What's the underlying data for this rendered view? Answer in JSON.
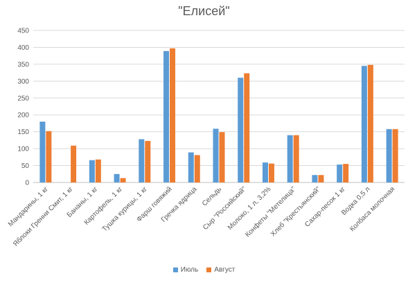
{
  "chart_data": {
    "type": "bar",
    "title": "\"Елисей\"",
    "categories": [
      "Мандарины, 1 кг",
      "Яблоки Гренни Смит, 1 кг",
      "Бананы, 1 кг",
      "Картофель, 1 кг",
      "Тушка курицы, 1 кг",
      "Фарш говяжий",
      "Гречка ядрица",
      "Сельдь",
      "Сыр \"Российский\"",
      "Молоко, 1 л, 3,2%",
      "Конфеты \"Метелица\"",
      "Хлеб \"Крестьянский\"",
      "Сахар-песок 1 кг",
      "Водка 0,5 л",
      "Колбаса молочная"
    ],
    "series": [
      {
        "name": "Июль",
        "color": "#5B9BD5",
        "values": [
          180,
          0,
          66,
          25,
          128,
          389,
          89,
          159,
          310,
          59,
          140,
          22,
          53,
          345,
          158
        ]
      },
      {
        "name": "Август",
        "color": "#ED7D31",
        "values": [
          152,
          109,
          68,
          13,
          123,
          397,
          81,
          149,
          323,
          56,
          140,
          22,
          55,
          348,
          158
        ]
      }
    ],
    "ylim": [
      0,
      450
    ],
    "yticks": [
      0,
      50,
      100,
      150,
      200,
      250,
      300,
      350,
      400,
      450
    ],
    "grid": true,
    "legend_position": "bottom",
    "xlabel": "",
    "ylabel": ""
  }
}
